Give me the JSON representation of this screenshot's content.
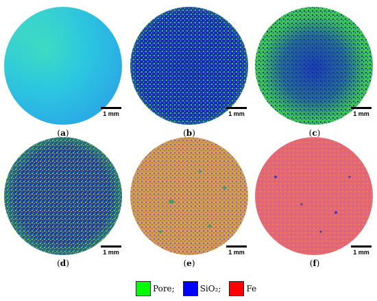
{
  "figure": {
    "panels": [
      {
        "id": "a",
        "caption": "a",
        "scale_label": "1 mm",
        "content": "reconstructed porous sample slice, cyan-green"
      },
      {
        "id": "b",
        "caption": "b",
        "scale_label": "1 mm",
        "content": "blue-dominant with green pores"
      },
      {
        "id": "c",
        "caption": "c",
        "scale_label": "1 mm",
        "content": "green rim with blue centre"
      },
      {
        "id": "d",
        "caption": "d",
        "scale_label": "1 mm",
        "content": "blue/green/orange mixture"
      },
      {
        "id": "e",
        "caption": "e",
        "scale_label": "1 mm",
        "content": "orange-purple mixture with small pores"
      },
      {
        "id": "f",
        "caption": "f",
        "scale_label": "1 mm",
        "content": "red-pink dominant with blue specks"
      }
    ],
    "legend": [
      {
        "label": "Pore;",
        "color": "#00ff00"
      },
      {
        "label": "SiO₂;",
        "color": "#0000ff"
      },
      {
        "label": "Fe",
        "color": "#ff0000"
      }
    ]
  },
  "colors": {
    "pore": "#00ff00",
    "sio2": "#0000ff",
    "fe": "#ff0000"
  }
}
